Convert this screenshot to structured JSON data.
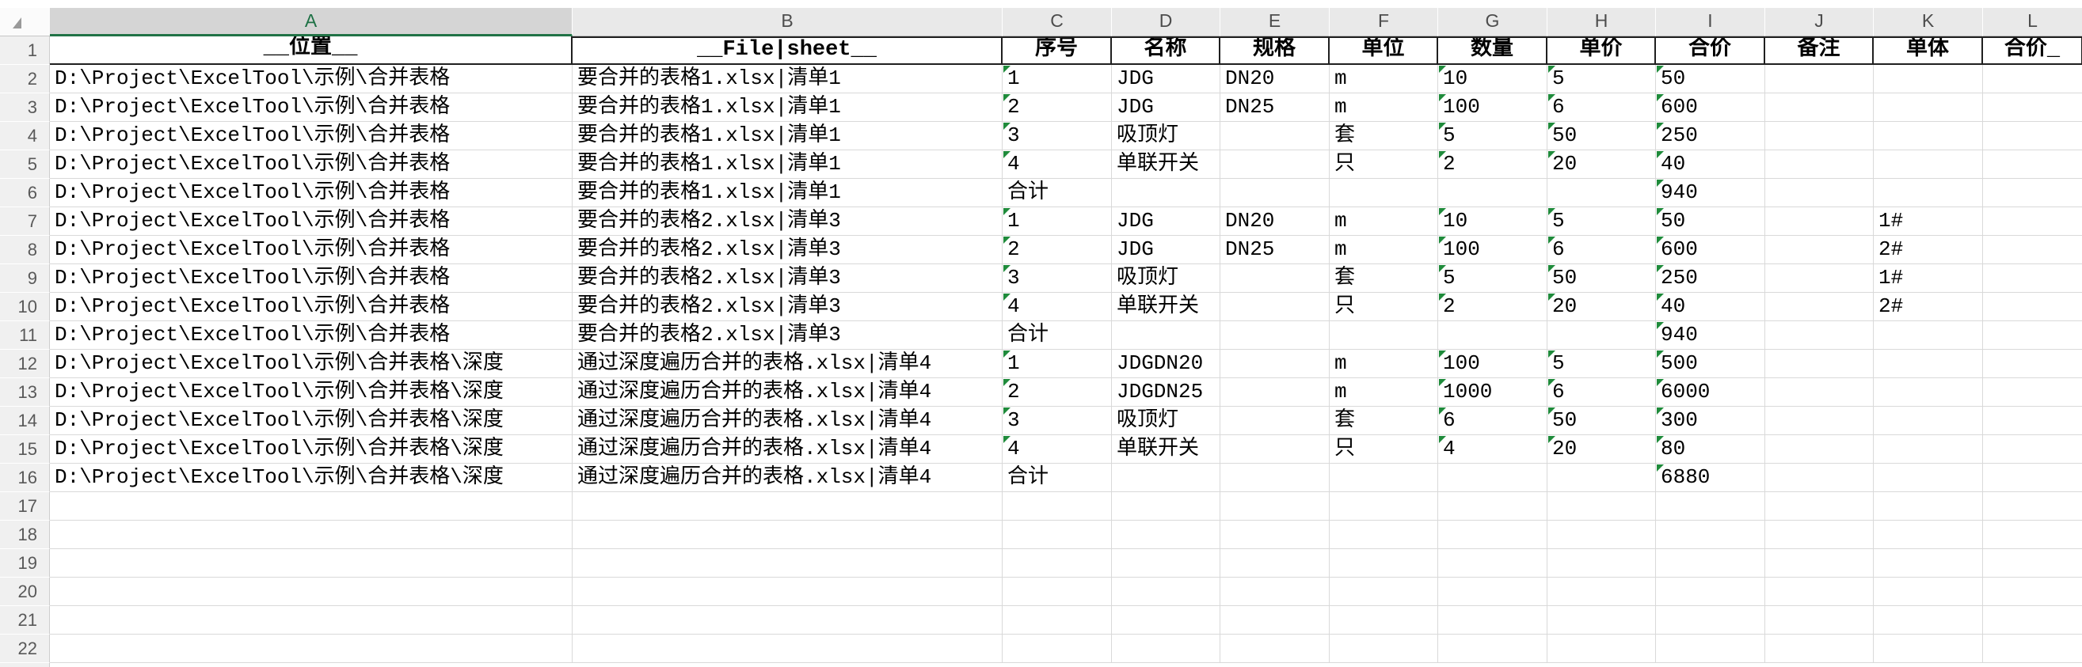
{
  "sheet": {
    "selected_column": "A",
    "columns": [
      "A",
      "B",
      "C",
      "D",
      "E",
      "F",
      "G",
      "H",
      "I",
      "J",
      "K",
      "L"
    ],
    "header_row": {
      "row_number": "1",
      "cells": [
        "__位置__",
        "__File|sheet__",
        "序号",
        "名称",
        "规格",
        "单位",
        "数量",
        "单价",
        "合价",
        "备注",
        "单体",
        "合价_"
      ]
    },
    "rows": [
      {
        "row_number": "2",
        "cells": [
          "D:\\Project\\ExcelTool\\示例\\合并表格",
          "要合并的表格1.xlsx|清单1",
          "1",
          "JDG",
          "DN20",
          "m",
          "10",
          "5",
          "50",
          "",
          "",
          ""
        ],
        "text_indicators": [
          2,
          6,
          7,
          8
        ]
      },
      {
        "row_number": "3",
        "cells": [
          "D:\\Project\\ExcelTool\\示例\\合并表格",
          "要合并的表格1.xlsx|清单1",
          "2",
          "JDG",
          "DN25",
          "m",
          "100",
          "6",
          "600",
          "",
          "",
          ""
        ],
        "text_indicators": [
          2,
          6,
          7,
          8
        ]
      },
      {
        "row_number": "4",
        "cells": [
          "D:\\Project\\ExcelTool\\示例\\合并表格",
          "要合并的表格1.xlsx|清单1",
          "3",
          "吸顶灯",
          "",
          "套",
          "5",
          "50",
          "250",
          "",
          "",
          ""
        ],
        "text_indicators": [
          2,
          6,
          7,
          8
        ]
      },
      {
        "row_number": "5",
        "cells": [
          "D:\\Project\\ExcelTool\\示例\\合并表格",
          "要合并的表格1.xlsx|清单1",
          "4",
          "单联开关",
          "",
          "只",
          "2",
          "20",
          "40",
          "",
          "",
          ""
        ],
        "text_indicators": [
          2,
          6,
          7,
          8
        ]
      },
      {
        "row_number": "6",
        "cells": [
          "D:\\Project\\ExcelTool\\示例\\合并表格",
          "要合并的表格1.xlsx|清单1",
          "合计",
          "",
          "",
          "",
          "",
          "",
          "940",
          "",
          "",
          ""
        ],
        "text_indicators": [
          8
        ]
      },
      {
        "row_number": "7",
        "cells": [
          "D:\\Project\\ExcelTool\\示例\\合并表格",
          "要合并的表格2.xlsx|清单3",
          "1",
          "JDG",
          "DN20",
          "m",
          "10",
          "5",
          "50",
          "",
          "1#",
          ""
        ],
        "text_indicators": [
          2,
          6,
          7,
          8
        ]
      },
      {
        "row_number": "8",
        "cells": [
          "D:\\Project\\ExcelTool\\示例\\合并表格",
          "要合并的表格2.xlsx|清单3",
          "2",
          "JDG",
          "DN25",
          "m",
          "100",
          "6",
          "600",
          "",
          "2#",
          ""
        ],
        "text_indicators": [
          2,
          6,
          7,
          8
        ]
      },
      {
        "row_number": "9",
        "cells": [
          "D:\\Project\\ExcelTool\\示例\\合并表格",
          "要合并的表格2.xlsx|清单3",
          "3",
          "吸顶灯",
          "",
          "套",
          "5",
          "50",
          "250",
          "",
          "1#",
          ""
        ],
        "text_indicators": [
          2,
          6,
          7,
          8
        ]
      },
      {
        "row_number": "10",
        "cells": [
          "D:\\Project\\ExcelTool\\示例\\合并表格",
          "要合并的表格2.xlsx|清单3",
          "4",
          "单联开关",
          "",
          "只",
          "2",
          "20",
          "40",
          "",
          "2#",
          ""
        ],
        "text_indicators": [
          2,
          6,
          7,
          8
        ]
      },
      {
        "row_number": "11",
        "cells": [
          "D:\\Project\\ExcelTool\\示例\\合并表格",
          "要合并的表格2.xlsx|清单3",
          "合计",
          "",
          "",
          "",
          "",
          "",
          "940",
          "",
          "",
          ""
        ],
        "text_indicators": [
          8
        ]
      },
      {
        "row_number": "12",
        "cells": [
          "D:\\Project\\ExcelTool\\示例\\合并表格\\深度",
          "通过深度遍历合并的表格.xlsx|清单4",
          "1",
          "JDGDN20",
          "",
          "m",
          "100",
          "5",
          "500",
          "",
          "",
          ""
        ],
        "text_indicators": [
          2,
          6,
          7,
          8
        ]
      },
      {
        "row_number": "13",
        "cells": [
          "D:\\Project\\ExcelTool\\示例\\合并表格\\深度",
          "通过深度遍历合并的表格.xlsx|清单4",
          "2",
          "JDGDN25",
          "",
          "m",
          "1000",
          "6",
          "6000",
          "",
          "",
          ""
        ],
        "text_indicators": [
          2,
          6,
          7,
          8
        ]
      },
      {
        "row_number": "14",
        "cells": [
          "D:\\Project\\ExcelTool\\示例\\合并表格\\深度",
          "通过深度遍历合并的表格.xlsx|清单4",
          "3",
          "吸顶灯",
          "",
          "套",
          "6",
          "50",
          "300",
          "",
          "",
          ""
        ],
        "text_indicators": [
          2,
          6,
          7,
          8
        ]
      },
      {
        "row_number": "15",
        "cells": [
          "D:\\Project\\ExcelTool\\示例\\合并表格\\深度",
          "通过深度遍历合并的表格.xlsx|清单4",
          "4",
          "单联开关",
          "",
          "只",
          "4",
          "20",
          "80",
          "",
          "",
          ""
        ],
        "text_indicators": [
          2,
          6,
          7,
          8
        ]
      },
      {
        "row_number": "16",
        "cells": [
          "D:\\Project\\ExcelTool\\示例\\合并表格\\深度",
          "通过深度遍历合并的表格.xlsx|清单4",
          "合计",
          "",
          "",
          "",
          "",
          "",
          "6880",
          "",
          "",
          ""
        ],
        "text_indicators": [
          8
        ]
      },
      {
        "row_number": "17",
        "cells": [
          "",
          "",
          "",
          "",
          "",
          "",
          "",
          "",
          "",
          "",
          "",
          ""
        ],
        "text_indicators": []
      },
      {
        "row_number": "18",
        "cells": [
          "",
          "",
          "",
          "",
          "",
          "",
          "",
          "",
          "",
          "",
          "",
          ""
        ],
        "text_indicators": []
      },
      {
        "row_number": "19",
        "cells": [
          "",
          "",
          "",
          "",
          "",
          "",
          "",
          "",
          "",
          "",
          "",
          ""
        ],
        "text_indicators": []
      },
      {
        "row_number": "20",
        "cells": [
          "",
          "",
          "",
          "",
          "",
          "",
          "",
          "",
          "",
          "",
          "",
          ""
        ],
        "text_indicators": []
      },
      {
        "row_number": "21",
        "cells": [
          "",
          "",
          "",
          "",
          "",
          "",
          "",
          "",
          "",
          "",
          "",
          ""
        ],
        "text_indicators": []
      },
      {
        "row_number": "22",
        "cells": [
          "",
          "",
          "",
          "",
          "",
          "",
          "",
          "",
          "",
          "",
          "",
          ""
        ],
        "text_indicators": []
      }
    ]
  },
  "colors": {
    "selection_accent": "#217346",
    "selected_header_text": "#1E7145",
    "selected_header_bg": "#D5D5D5",
    "header_bg": "#E9E9E9",
    "row_header_bg": "#F0F0F0",
    "gridline": "#D9D9D9",
    "table_border": "#1F1F1F",
    "text_indicator": "#1F8B3B"
  }
}
